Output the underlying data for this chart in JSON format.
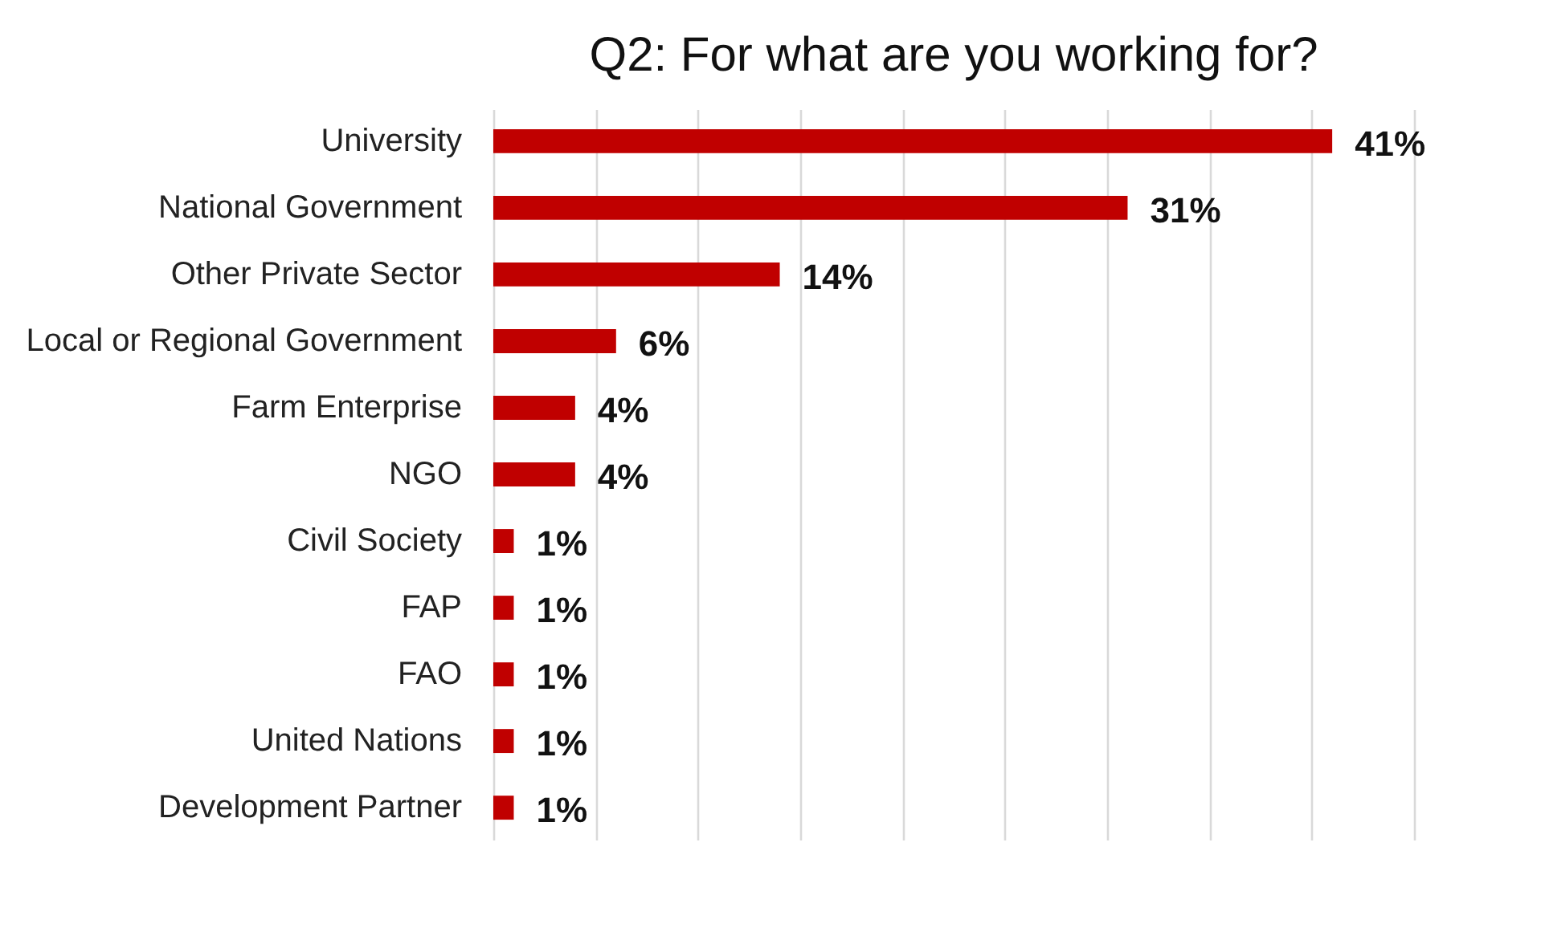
{
  "chart_data": {
    "type": "bar",
    "orientation": "horizontal",
    "title": "Q2: For what are you working for?",
    "categories": [
      "University",
      "National Government",
      "Other Private Sector",
      "Local or Regional Government",
      "Farm Enterprise",
      "NGO",
      "Civil Society",
      "FAP",
      "FAO",
      "United Nations",
      "Development Partner"
    ],
    "values": [
      41,
      31,
      14,
      6,
      4,
      4,
      1,
      1,
      1,
      1,
      1
    ],
    "value_labels": [
      "41%",
      "31%",
      "14%",
      "6%",
      "4%",
      "4%",
      "1%",
      "1%",
      "1%",
      "1%",
      "1%"
    ],
    "color": "#c00000",
    "xlim": [
      0,
      45
    ],
    "xticks": [
      {
        "value": 0,
        "label": null
      },
      {
        "value": 5,
        "label": null
      },
      {
        "value": 10,
        "label": null
      },
      {
        "value": 15,
        "label": null
      },
      {
        "value": 20,
        "label": null
      },
      {
        "value": 25,
        "label": null
      },
      {
        "value": 30,
        "label": null
      },
      {
        "value": 35,
        "label": null
      },
      {
        "value": 40,
        "label": null
      },
      {
        "value": 45,
        "label": null
      }
    ],
    "grid": "x",
    "tick_labels": "y"
  }
}
